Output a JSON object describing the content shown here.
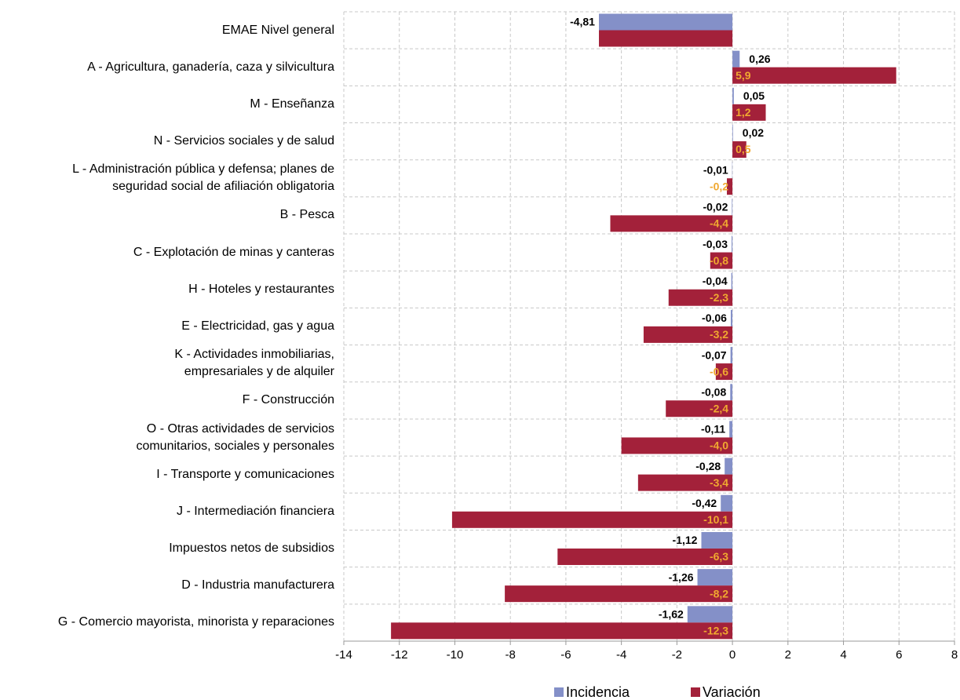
{
  "chart_data": {
    "type": "bar",
    "orientation": "horizontal",
    "categories": [
      "EMAE Nivel general",
      "A -  Agricultura, ganadería, caza y silvicultura",
      "M - Enseñanza",
      "N - Servicios sociales y de salud",
      "L - Administración pública y defensa; planes de\nseguridad social de afiliación obligatoria",
      "B - Pesca",
      "C - Explotación de minas y canteras",
      "H - Hoteles y restaurantes",
      "E - Electricidad, gas y agua",
      "K - Actividades inmobiliarias,\nempresariales y de alquiler",
      "F - Construcción",
      "O - Otras actividades de servicios\ncomunitarios, sociales y personales",
      "I - Transporte y comunicaciones",
      "J - Intermediación financiera",
      "Impuestos netos de subsidios",
      "D - Industria manufacturera",
      "G - Comercio mayorista, minorista y reparaciones"
    ],
    "series": [
      {
        "name": "Incidencia",
        "color": "#8490c8",
        "label_color": "#000000",
        "values": [
          -4.81,
          0.26,
          0.05,
          0.02,
          -0.01,
          -0.02,
          -0.03,
          -0.04,
          -0.06,
          -0.07,
          -0.08,
          -0.11,
          -0.28,
          -0.42,
          -1.12,
          -1.26,
          -1.62
        ],
        "value_labels": [
          "-4,81",
          "0,26",
          "0,05",
          "0,02",
          "-0,01",
          "-0,02",
          "-0,03",
          "-0,04",
          "-0,06",
          "-0,07",
          "-0,08",
          "-0,11",
          "-0,28",
          "-0,42",
          "-1,12",
          "-1,26",
          "-1,62"
        ]
      },
      {
        "name": "Variación",
        "color": "#a3213a",
        "label_color": "#f0a830",
        "values": [
          -4.81,
          5.9,
          1.2,
          0.5,
          -0.2,
          -4.4,
          -0.8,
          -2.3,
          -3.2,
          -0.6,
          -2.4,
          -4.0,
          -3.4,
          -10.1,
          -6.3,
          -8.2,
          -12.3
        ],
        "value_labels": [
          null,
          "5,9",
          "1,2",
          "0,5",
          "-0,2",
          "-4,4",
          "-0,8",
          "-2,3",
          "-3,2",
          "-0,6",
          "-2,4",
          "-4,0",
          "-3,4",
          "-10,1",
          "-6,3",
          "-8,2",
          "-12,3"
        ]
      }
    ],
    "xlim": [
      -14,
      8
    ],
    "xticks": [
      -14,
      -12,
      -10,
      -8,
      -6,
      -4,
      -2,
      0,
      2,
      4,
      6,
      8
    ],
    "grid": true,
    "legend": "bottom"
  }
}
